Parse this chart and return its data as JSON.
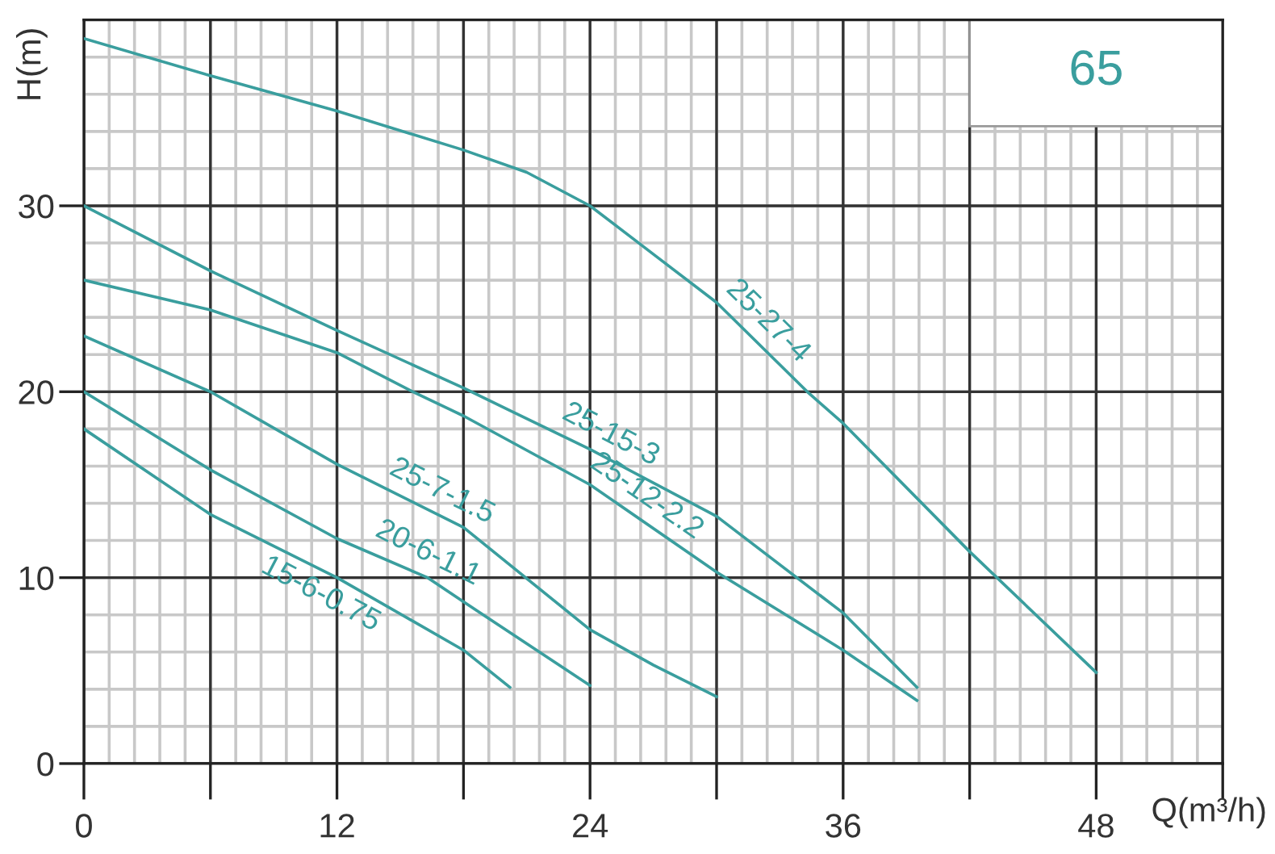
{
  "chart_data": {
    "type": "line",
    "xlabel": "Q(m³/h)",
    "ylabel": "H(m)",
    "xlim": [
      0,
      54
    ],
    "ylim": [
      0,
      40
    ],
    "xticks": [
      0,
      {
        "value": 6,
        "label": null
      },
      12,
      {
        "value": 18,
        "label": null
      },
      24,
      {
        "value": 30,
        "label": null
      },
      36,
      {
        "value": 42,
        "label": null
      },
      48,
      {
        "value": 54,
        "label": null
      }
    ],
    "yticks": [
      0,
      10,
      20,
      30
    ],
    "grid": true,
    "legend": false,
    "marker": "none",
    "line_style": "solid",
    "annotations": [
      "65"
    ],
    "series": [
      {
        "name": "25-27-4",
        "color": "#3a9e9e",
        "x": [
          0,
          6,
          12,
          18,
          21,
          24,
          27,
          30,
          34.3,
          36,
          42,
          48
        ],
        "values": [
          39,
          37,
          35.1,
          33,
          31.8,
          30,
          27.4,
          24.8,
          20,
          18.3,
          11.4,
          4.9
        ]
      },
      {
        "name": "25-15-3",
        "color": "#3a9e9e",
        "x": [
          0,
          6,
          12,
          18,
          24,
          30,
          36,
          39.5
        ],
        "values": [
          30,
          26.5,
          23.3,
          20.2,
          16.9,
          13.3,
          8.1,
          4.1
        ]
      },
      {
        "name": "25-12-2.2",
        "color": "#3a9e9e",
        "x": [
          0,
          6,
          12,
          15.6,
          18,
          24,
          30,
          36,
          39.5
        ],
        "values": [
          26,
          24.4,
          22.1,
          20,
          18.7,
          15,
          10.3,
          6.1,
          3.4
        ]
      },
      {
        "name": "25-7-1.5",
        "color": "#3a9e9e",
        "x": [
          0,
          6,
          12,
          18,
          24,
          27,
          30
        ],
        "values": [
          23,
          20,
          16.1,
          12.7,
          7.2,
          5.3,
          3.6
        ]
      },
      {
        "name": "20-6-1.1",
        "color": "#3a9e9e",
        "x": [
          0,
          6,
          12,
          16.3,
          18,
          24
        ],
        "values": [
          20,
          15.8,
          12.1,
          10,
          8.7,
          4.2
        ]
      },
      {
        "name": "15-6-0.75",
        "color": "#3a9e9e",
        "x": [
          0,
          6,
          12,
          18,
          20.2
        ],
        "values": [
          18,
          13.4,
          10,
          6.1,
          4.1
        ]
      }
    ]
  }
}
